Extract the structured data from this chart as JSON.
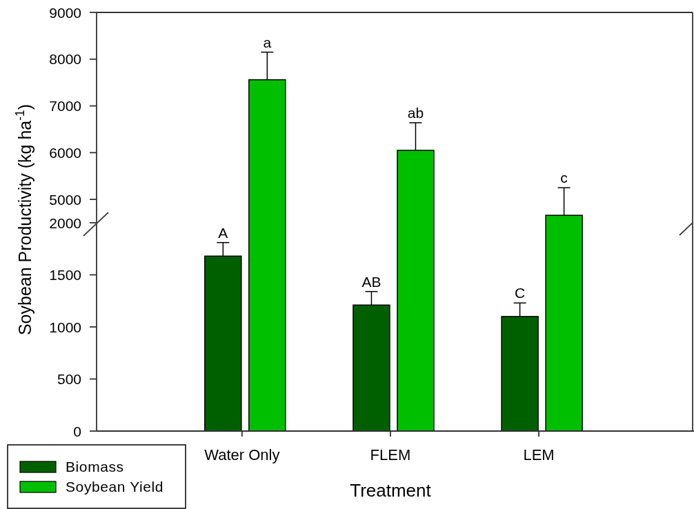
{
  "chart_data": [
    {
      "type": "bar",
      "categories": [
        null,
        null,
        null
      ],
      "series": [
        {
          "color": "#00bf00",
          "values": [
            7560,
            6050,
            4660
          ],
          "errors": [
            [
              7560,
              8150
            ],
            [
              6050,
              6640
            ],
            [
              4660,
              5250
            ]
          ]
        }
      ],
      "ylim": [
        4500,
        9000
      ],
      "yticks": [
        5000,
        6000,
        7000,
        8000,
        9000
      ],
      "tick_labels": "y",
      "annotations": [
        "a",
        "ab",
        "c"
      ]
    },
    {
      "type": "bar",
      "xlabel": "Treatment",
      "ylabel": "Soybean Productivity (kg ha$^{-1}$)",
      "categories": [
        "Water Only",
        "FLEM",
        "LEM"
      ],
      "series": [
        {
          "name": "Biomass",
          "color": "#006000",
          "values": [
            1680,
            1210,
            1100
          ],
          "errors": [
            [
              1680,
              1810
            ],
            [
              1210,
              1340
            ],
            [
              1100,
              1230
            ]
          ]
        },
        {
          "name": "Soybean Yield",
          "color": "#00bf00",
          "values": [
            null,
            null,
            null
          ]
        }
      ],
      "ylim": [
        0,
        2000
      ],
      "yticks": [
        0,
        500,
        1000,
        1500,
        2000
      ],
      "legend": "bottom left",
      "annotations": [
        "A",
        "AB",
        "C"
      ]
    }
  ]
}
